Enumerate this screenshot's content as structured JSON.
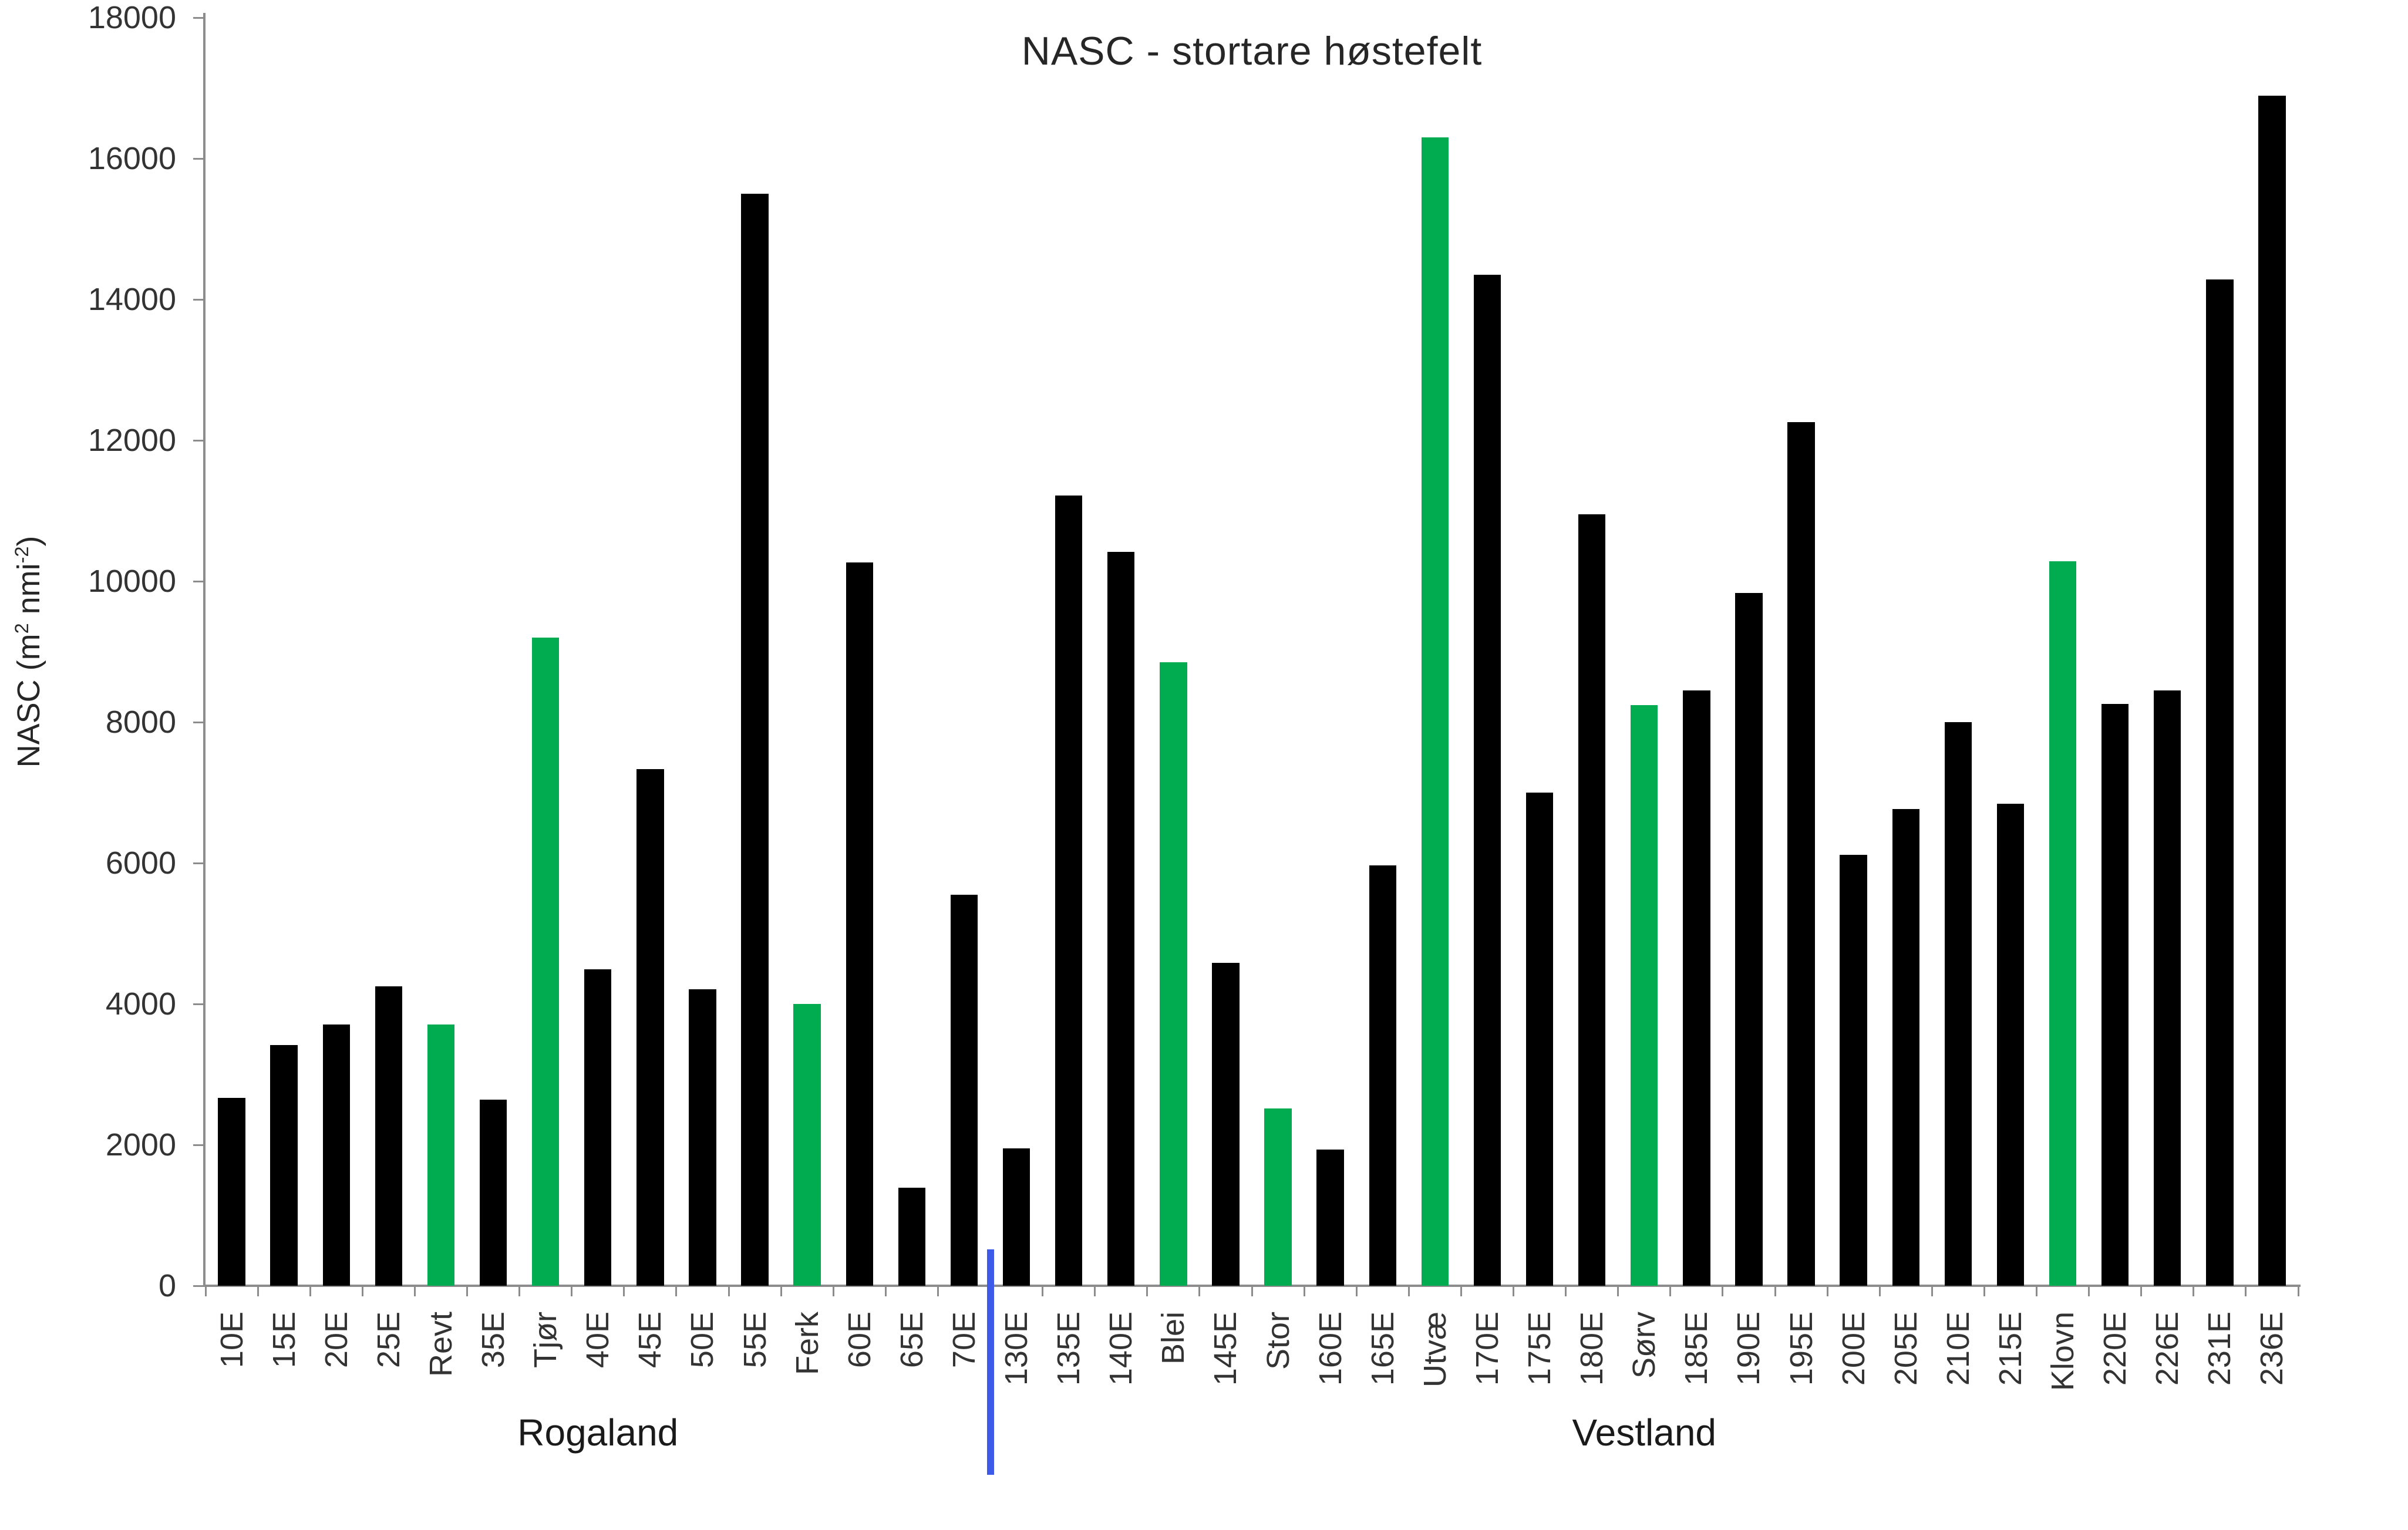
{
  "chart_data": {
    "type": "bar",
    "title": "NASC - stortare høstefelt",
    "xlabel": "",
    "ylabel": "NASC (m² nmi⁻²)",
    "ylabel_parts": [
      {
        "text": "NASC (m",
        "sup": false
      },
      {
        "text": "2",
        "sup": true
      },
      {
        "text": " nmi",
        "sup": false
      },
      {
        "text": "-2",
        "sup": true
      },
      {
        "text": ")",
        "sup": false
      }
    ],
    "ylim": [
      0,
      18000
    ],
    "y_ticks": [
      0,
      2000,
      4000,
      6000,
      8000,
      10000,
      12000,
      14000,
      16000,
      18000
    ],
    "grid": false,
    "legend": null,
    "categories": [
      "10E",
      "15E",
      "20E",
      "25E",
      "Revt",
      "35E",
      "Tjør",
      "40E",
      "45E",
      "50E",
      "55E",
      "Ferk",
      "60E",
      "65E",
      "70E",
      "130E",
      "135E",
      "140E",
      "Blei",
      "145E",
      "Stor",
      "160E",
      "165E",
      "Utvæ",
      "170E",
      "175E",
      "180E",
      "Sørv",
      "185E",
      "190E",
      "195E",
      "200E",
      "205E",
      "210E",
      "215E",
      "Klovn",
      "220E",
      "226E",
      "231E",
      "236E"
    ],
    "values": [
      2670,
      3420,
      3710,
      4250,
      3710,
      2640,
      9200,
      4490,
      7330,
      4210,
      15500,
      4000,
      10270,
      1390,
      5550,
      1950,
      11220,
      10420,
      8850,
      4580,
      2520,
      1930,
      5970,
      16300,
      14350,
      7000,
      10950,
      8240,
      8450,
      9830,
      12260,
      6120,
      6770,
      8000,
      6840,
      10280,
      8260,
      8450,
      14280,
      16890
    ],
    "highlighted": [
      false,
      false,
      false,
      false,
      true,
      false,
      true,
      false,
      false,
      false,
      false,
      true,
      false,
      false,
      false,
      false,
      false,
      false,
      true,
      false,
      true,
      false,
      false,
      true,
      false,
      false,
      false,
      true,
      false,
      false,
      false,
      false,
      false,
      false,
      false,
      true,
      false,
      false,
      false,
      false
    ],
    "highlighted_categories": [
      "Revt",
      "Tjør",
      "Ferk",
      "Blei",
      "Stor",
      "Utvæ",
      "Sørv",
      "Klovn"
    ],
    "bar_color_default": "#000000",
    "bar_color_highlight": "#00AC4F",
    "regions": [
      {
        "label": "Rogaland",
        "from": "10E",
        "to": "70E"
      },
      {
        "label": "Vestland",
        "from": "130E",
        "to": "236E"
      }
    ],
    "divider": {
      "after_category": "70E",
      "color": "#3D5BE8"
    }
  }
}
